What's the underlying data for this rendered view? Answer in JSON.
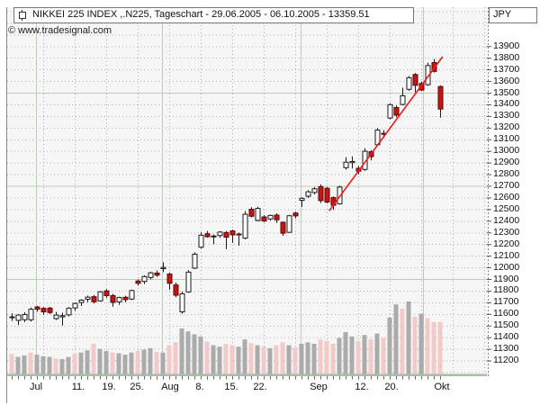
{
  "title": {
    "text": "NIKKEI 225 INDEX ,.N225, Tageschart - 29.06.2005 - 06.10.2005 - 13359.51",
    "currency": "JPY"
  },
  "watermark": "© www.tradesignal.com",
  "chart_data": {
    "type": "candlestick",
    "instrument": "NIKKEI 225 INDEX",
    "symbol": ".N225",
    "period": "Tageschart",
    "date_range": "29.06.2005 - 06.10.2005",
    "last_close": 13359.51,
    "y_axis": {
      "min": 11200,
      "max": 13900,
      "tick_step": 100,
      "unit": "JPY",
      "major_gridlines": [
        11900,
        12700,
        13500
      ]
    },
    "x_axis": {
      "tick_labels": [
        "Jul",
        "11.",
        "19.",
        "25.",
        "Aug",
        "8.",
        "15.",
        "22.",
        "Sep",
        "12.",
        "20.",
        "Okt"
      ]
    },
    "ohlc": [
      [
        11570,
        11605,
        11540,
        11575
      ],
      [
        11545,
        11600,
        11505,
        11590
      ],
      [
        11550,
        11615,
        11530,
        11595
      ],
      [
        11550,
        11655,
        11535,
        11640
      ],
      [
        11660,
        11668,
        11620,
        11641
      ],
      [
        11648,
        11658,
        11592,
        11618
      ],
      [
        11650,
        11660,
        11600,
        11612
      ],
      [
        11560,
        11618,
        11548,
        11590
      ],
      [
        11575,
        11610,
        11500,
        11585
      ],
      [
        11592,
        11658,
        11578,
        11648
      ],
      [
        11652,
        11698,
        11625,
        11690
      ],
      [
        11698,
        11726,
        11668,
        11718
      ],
      [
        11726,
        11758,
        11700,
        11744
      ],
      [
        11748,
        11762,
        11688,
        11704
      ],
      [
        11712,
        11798,
        11706,
        11790
      ],
      [
        11798,
        11812,
        11738,
        11757
      ],
      [
        11758,
        11772,
        11662,
        11699
      ],
      [
        11703,
        11748,
        11678,
        11741
      ],
      [
        11743,
        11756,
        11701,
        11723
      ],
      [
        11728,
        11808,
        11718,
        11801
      ],
      [
        11883,
        11896,
        11843,
        11863
      ],
      [
        11879,
        11931,
        11856,
        11921
      ],
      [
        11913,
        11963,
        11896,
        11953
      ],
      [
        11951,
        11973,
        11918,
        11933
      ],
      [
        11989,
        12043,
        11959,
        11999
      ],
      [
        11943,
        11956,
        11808,
        11863
      ],
      [
        11849,
        11869,
        11743,
        11761
      ],
      [
        11618,
        11793,
        11601,
        11772
      ],
      [
        11789,
        11976,
        11781,
        11959
      ],
      [
        11993,
        12129,
        11986,
        12113
      ],
      [
        12173,
        12301,
        12161,
        12276
      ],
      [
        12289,
        12313,
        12256,
        12263
      ],
      [
        12262,
        12283,
        12199,
        12269
      ],
      [
        12273,
        12311,
        12253,
        12303
      ],
      [
        12299,
        12313,
        12156,
        12259
      ],
      [
        12313,
        12323,
        12209,
        12279
      ],
      [
        12286,
        12299,
        12186,
        12281
      ],
      [
        12251,
        12483,
        12241,
        12456
      ],
      [
        12499,
        12516,
        12429,
        12439
      ],
      [
        12403,
        12521,
        12396,
        12506
      ],
      [
        12433,
        12449,
        12389,
        12399
      ],
      [
        12416,
        12453,
        12401,
        12446
      ],
      [
        12449,
        12463,
        12381,
        12409
      ],
      [
        12386,
        12396,
        12271,
        12293
      ],
      [
        12301,
        12451,
        12296,
        12443
      ],
      [
        12466,
        12479,
        12421,
        12442
      ],
      [
        12576,
        12601,
        12519,
        12593
      ],
      [
        12611,
        12663,
        12596,
        12649
      ],
      [
        12643,
        12689,
        12626,
        12675
      ],
      [
        12693,
        12713,
        12553,
        12573
      ],
      [
        12679,
        12691,
        12549,
        12561
      ],
      [
        12599,
        12609,
        12493,
        12533
      ],
      [
        12546,
        12701,
        12539,
        12689
      ],
      [
        12856,
        12946,
        12839,
        12903
      ],
      [
        12899,
        12953,
        12849,
        12909
      ],
      [
        12851,
        12871,
        12799,
        12826
      ],
      [
        12841,
        13023,
        12829,
        12997
      ],
      [
        12993,
        13006,
        12919,
        12951
      ],
      [
        13053,
        13196,
        13041,
        13179
      ],
      [
        13151,
        13179,
        13113,
        13143
      ],
      [
        13283,
        13409,
        13271,
        13397
      ],
      [
        13373,
        13391,
        13289,
        13307
      ],
      [
        13399,
        13543,
        13391,
        13473
      ],
      [
        13529,
        13643,
        13516,
        13629
      ],
      [
        13656,
        13669,
        13503,
        13563
      ],
      [
        13579,
        13593,
        13513,
        13523
      ],
      [
        13569,
        13758,
        13559,
        13733
      ],
      [
        13759,
        13789,
        13673,
        13683
      ],
      [
        13553,
        13563,
        13286,
        13359.51
      ]
    ],
    "volume_rel": [
      28,
      24,
      26,
      30,
      27,
      25,
      24,
      22,
      21,
      24,
      28,
      30,
      33,
      42,
      35,
      32,
      30,
      29,
      27,
      30,
      32,
      34,
      36,
      31,
      30,
      40,
      44,
      63,
      59,
      55,
      52,
      45,
      40,
      38,
      42,
      40,
      38,
      48,
      43,
      40,
      38,
      36,
      40,
      44,
      40,
      37,
      42,
      44,
      42,
      48,
      46,
      42,
      50,
      58,
      52,
      46,
      54,
      48,
      56,
      50,
      78,
      96,
      90,
      100,
      79,
      83,
      77,
      72,
      72
    ],
    "volume_down_flags": [
      1,
      0,
      0,
      1,
      0,
      0,
      0,
      1,
      0,
      0,
      1,
      0,
      0,
      1,
      0,
      0,
      1,
      0,
      0,
      0,
      1,
      0,
      0,
      1,
      0,
      1,
      1,
      0,
      0,
      0,
      0,
      1,
      0,
      0,
      1,
      1,
      0,
      0,
      1,
      0,
      1,
      0,
      1,
      1,
      0,
      1,
      0,
      0,
      0,
      1,
      1,
      1,
      0,
      0,
      0,
      1,
      0,
      1,
      0,
      1,
      0,
      0,
      1,
      0,
      1,
      0,
      1,
      1,
      1
    ],
    "trend_line": {
      "from_index": 50.4,
      "from_value": 12486,
      "to_index": 68.4,
      "to_value": 13809,
      "color": "#f01818"
    },
    "colors": {
      "up_fill": "#ffffff",
      "up_stroke": "#1a1a1a",
      "down_fill": "#c41414",
      "down_stroke": "#600808",
      "volume_up": "#ababab",
      "volume_down": "#f2caca",
      "grid_major": "#b9ceb9",
      "grid_dotted": "#b0b0b0",
      "axis_line": "#a9bda9",
      "background": "#f6f6f6"
    }
  }
}
